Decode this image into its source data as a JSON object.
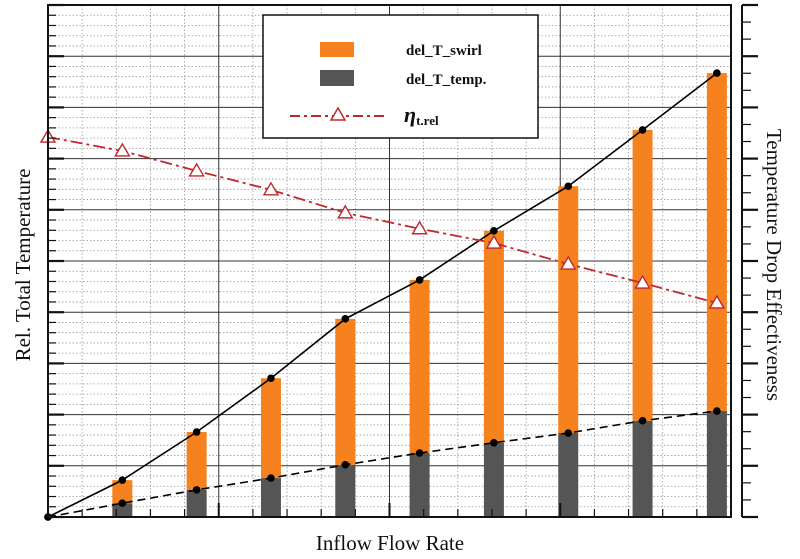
{
  "chart_data": {
    "type": "bar",
    "title": "",
    "xlabel": "Inflow Flow Rate",
    "ylabel": "Rel. Total Temperature",
    "y2label": "Temperature Drop Effectiveness",
    "x": [
      1,
      2,
      3,
      4,
      5,
      6,
      7,
      8,
      9
    ],
    "xlim": [
      0,
      9.19
    ],
    "ylim": [
      0,
      10
    ],
    "grid": true,
    "tick_labels_shown": false,
    "legend_placement": "top-center",
    "stacked": true,
    "series": [
      {
        "name": "del_T_temp.",
        "kind": "bar",
        "color": "#555555",
        "values": [
          0.27,
          0.53,
          0.76,
          1.02,
          1.25,
          1.45,
          1.64,
          1.88,
          2.07
        ]
      },
      {
        "name": "del_T_swirl",
        "kind": "bar",
        "color": "#f5821f",
        "values": [
          0.45,
          1.13,
          1.95,
          2.85,
          3.38,
          4.14,
          4.82,
          5.68,
          6.6
        ]
      },
      {
        "name": "",
        "kind": "line-total",
        "color": "#000000",
        "style": "solid",
        "x": [
          0,
          1,
          2,
          3,
          4,
          5,
          6,
          7,
          8,
          9
        ],
        "values": [
          0,
          0.72,
          1.66,
          2.71,
          3.87,
          4.63,
          5.59,
          6.46,
          7.56,
          8.67
        ]
      },
      {
        "name": "",
        "kind": "line-temp",
        "color": "#000000",
        "style": "dashed",
        "x": [
          0,
          1,
          2,
          3,
          4,
          5,
          6,
          7,
          8,
          9
        ],
        "values": [
          0,
          0.27,
          0.53,
          0.76,
          1.02,
          1.25,
          1.45,
          1.64,
          1.88,
          2.07
        ]
      },
      {
        "name": "η t.rel",
        "kind": "line-marker",
        "axis": "right",
        "color": "#c0282d",
        "style": "dash-dot",
        "marker": "open-triangle",
        "x": [
          0,
          1,
          2,
          3,
          4,
          5,
          6,
          7,
          8,
          9
        ],
        "values": [
          7.42,
          7.15,
          6.76,
          6.39,
          5.94,
          5.63,
          5.35,
          4.94,
          4.57,
          4.18
        ]
      }
    ],
    "legend": [
      {
        "label": "del_T_swirl",
        "swatch": "bar",
        "color": "#f5821f"
      },
      {
        "label": "del_T_temp.",
        "swatch": "bar",
        "color": "#555555"
      },
      {
        "label_main": "η",
        "label_sub": "t.rel",
        "swatch": "dash-dot-triangle",
        "color": "#c0282d"
      }
    ]
  }
}
